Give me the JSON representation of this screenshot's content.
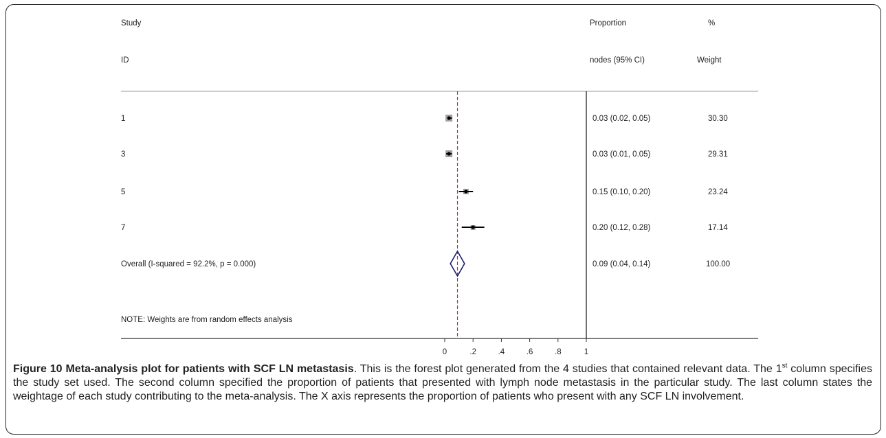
{
  "chart_data": {
    "type": "forest",
    "header": {
      "col1_line1": "Study",
      "col1_line2": "ID",
      "col2_line1": "Proportion",
      "col2_line2": "nodes (95% CI)",
      "col3_line1": "%",
      "col3_line2": "Weight"
    },
    "studies": [
      {
        "id": "1",
        "estimate": 0.03,
        "ci_low": 0.02,
        "ci_high": 0.05,
        "label": "0.03 (0.02, 0.05)",
        "weight": "30.30"
      },
      {
        "id": "3",
        "estimate": 0.03,
        "ci_low": 0.01,
        "ci_high": 0.05,
        "label": "0.03 (0.01, 0.05)",
        "weight": "29.31"
      },
      {
        "id": "5",
        "estimate": 0.15,
        "ci_low": 0.1,
        "ci_high": 0.2,
        "label": "0.15 (0.10, 0.20)",
        "weight": "23.24"
      },
      {
        "id": "7",
        "estimate": 0.2,
        "ci_low": 0.12,
        "ci_high": 0.28,
        "label": "0.20 (0.12, 0.28)",
        "weight": "17.14"
      }
    ],
    "overall": {
      "id": "Overall  (I-squared = 92.2%, p = 0.000)",
      "estimate": 0.09,
      "ci_low": 0.04,
      "ci_high": 0.14,
      "label": "0.09 (0.04, 0.14)",
      "weight": "100.00"
    },
    "note": "NOTE: Weights are from random effects analysis",
    "x_ticks": [
      0,
      0.2,
      0.4,
      0.6,
      0.8,
      1
    ],
    "x_tick_labels": [
      "0",
      ".2",
      ".4",
      ".6",
      ".8",
      "1"
    ],
    "xlim": [
      0,
      1
    ],
    "colors": {
      "overall_line": "#b03030",
      "diamond": "#1c1c6e",
      "box": "#a0a0a0",
      "text": "#222222"
    }
  },
  "caption": {
    "title": "Figure 10 Meta-analysis plot for patients with SCF LN metastasis",
    "text_a": ". This is the forest plot generated from the 4 studies that contained relevant data. The 1",
    "sup": "st",
    "text_b": " column specifies the study set used. The second column specified the proportion of patients that presented with lymph node metastasis in the particular study. The last column states the weightage of each study contributing to the meta-analysis. The X axis represents the proportion of patients who present with any SCF LN involvement."
  }
}
